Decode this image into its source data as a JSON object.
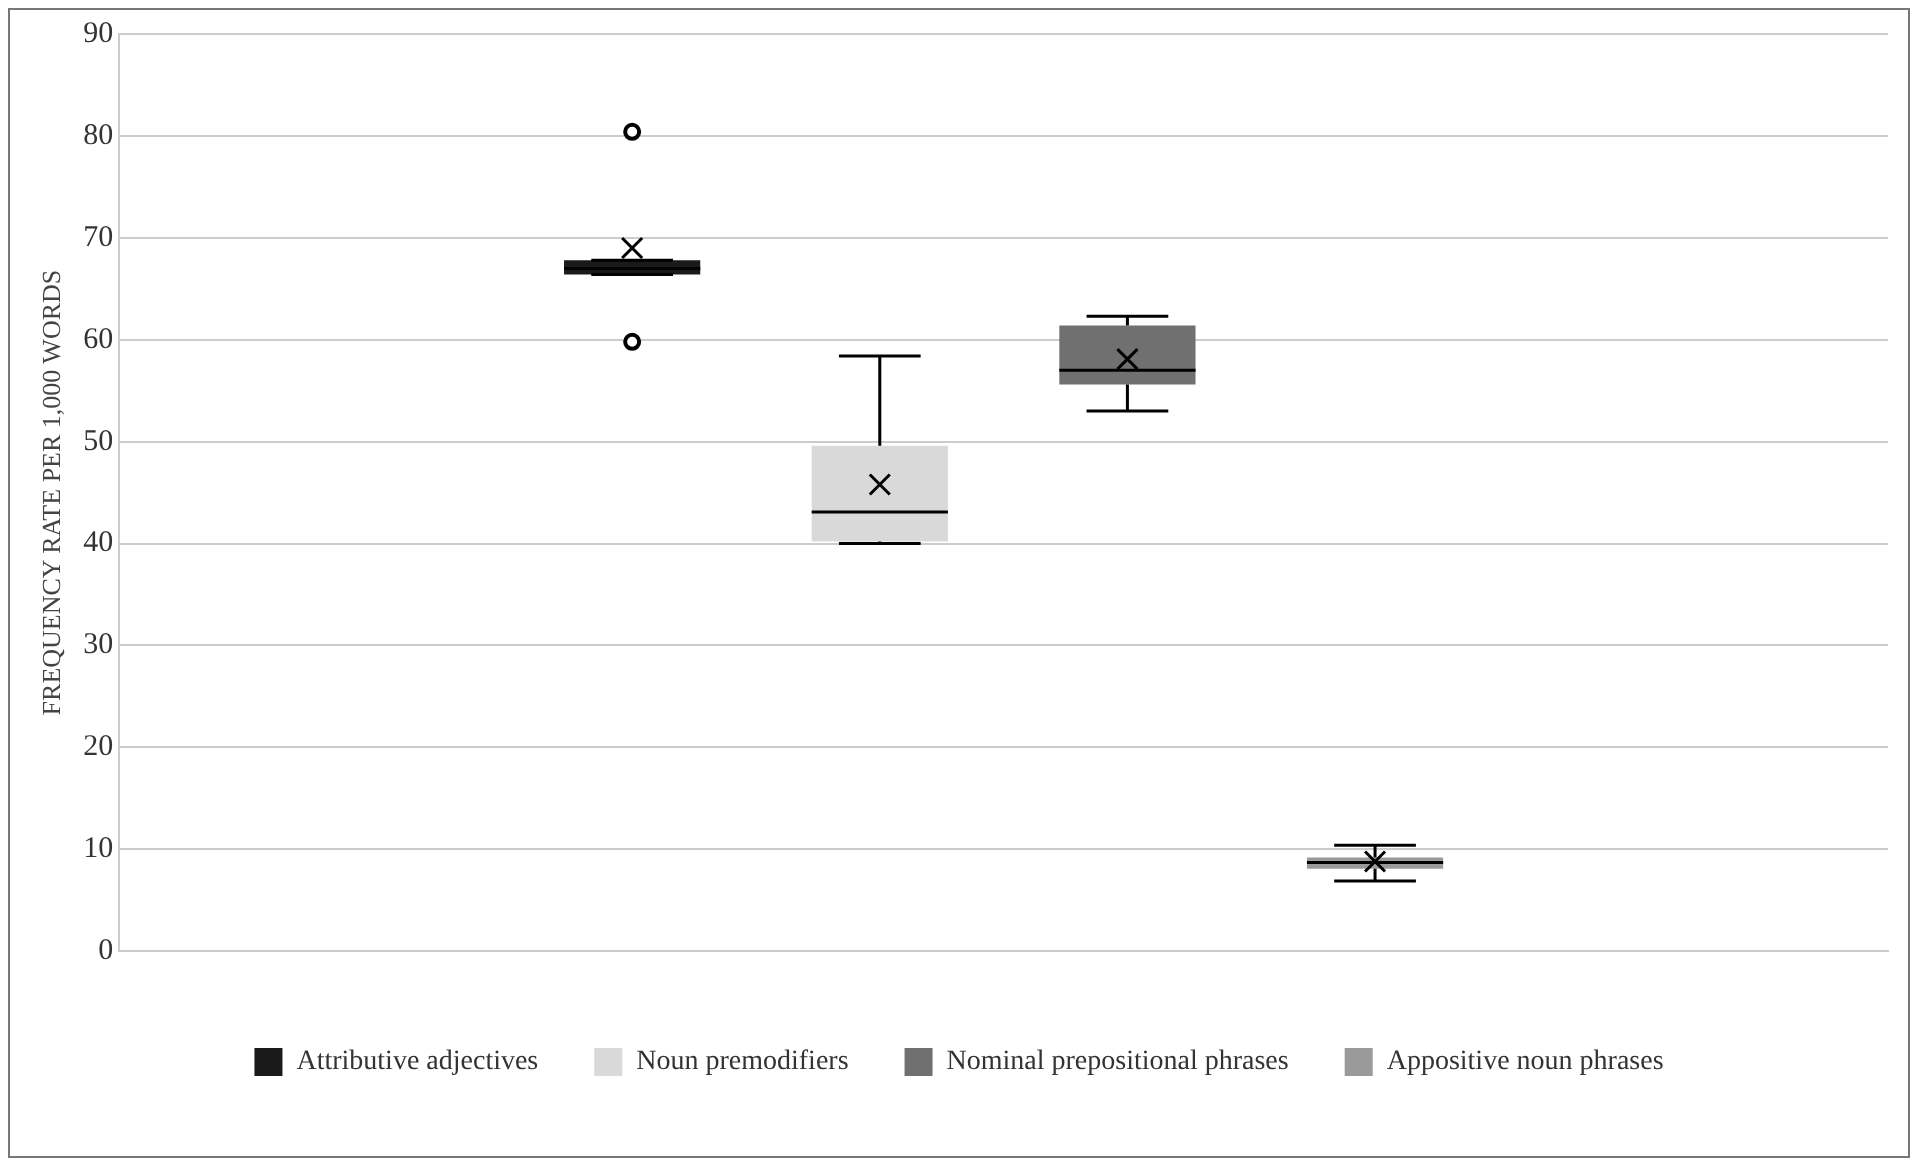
{
  "chart_data": {
    "type": "box",
    "ylabel": "FREQUENCY RATE PER 1,000 WORDS",
    "categories": [
      null
    ],
    "ylim": [
      0,
      90
    ],
    "yticks": [
      0,
      10,
      20,
      30,
      40,
      50,
      60,
      70,
      80,
      90
    ],
    "grid": "y",
    "legend": "bottom",
    "series": [
      {
        "name": "Attributive adjectives",
        "color": "#1a1a1a",
        "boxes": [
          {
            "low": 66.4,
            "q1": 66.4,
            "median": 67,
            "q3": 67.8,
            "high": 67.8,
            "mean": 69,
            "outliers": [
              80.4,
              59.8
            ]
          }
        ]
      },
      {
        "name": "Noun premodifiers",
        "color": "#d9d9d9",
        "boxes": [
          {
            "low": 40,
            "q1": 40.2,
            "median": 43.1,
            "q3": 49.6,
            "high": 58.4,
            "mean": 45.8
          }
        ]
      },
      {
        "name": "Nominal prepositional phrases",
        "color": "#707070",
        "boxes": [
          {
            "low": 53,
            "q1": 55.6,
            "median": 57,
            "q3": 61.4,
            "high": 62.3,
            "mean": 58.1
          }
        ]
      },
      {
        "name": "Appositive noun phrases",
        "color": "#9a9a9a",
        "boxes": [
          {
            "low": 6.9,
            "q1": 8.1,
            "median": 8.7,
            "q3": 9.2,
            "high": 10.4,
            "mean": 8.8
          }
        ]
      }
    ]
  }
}
